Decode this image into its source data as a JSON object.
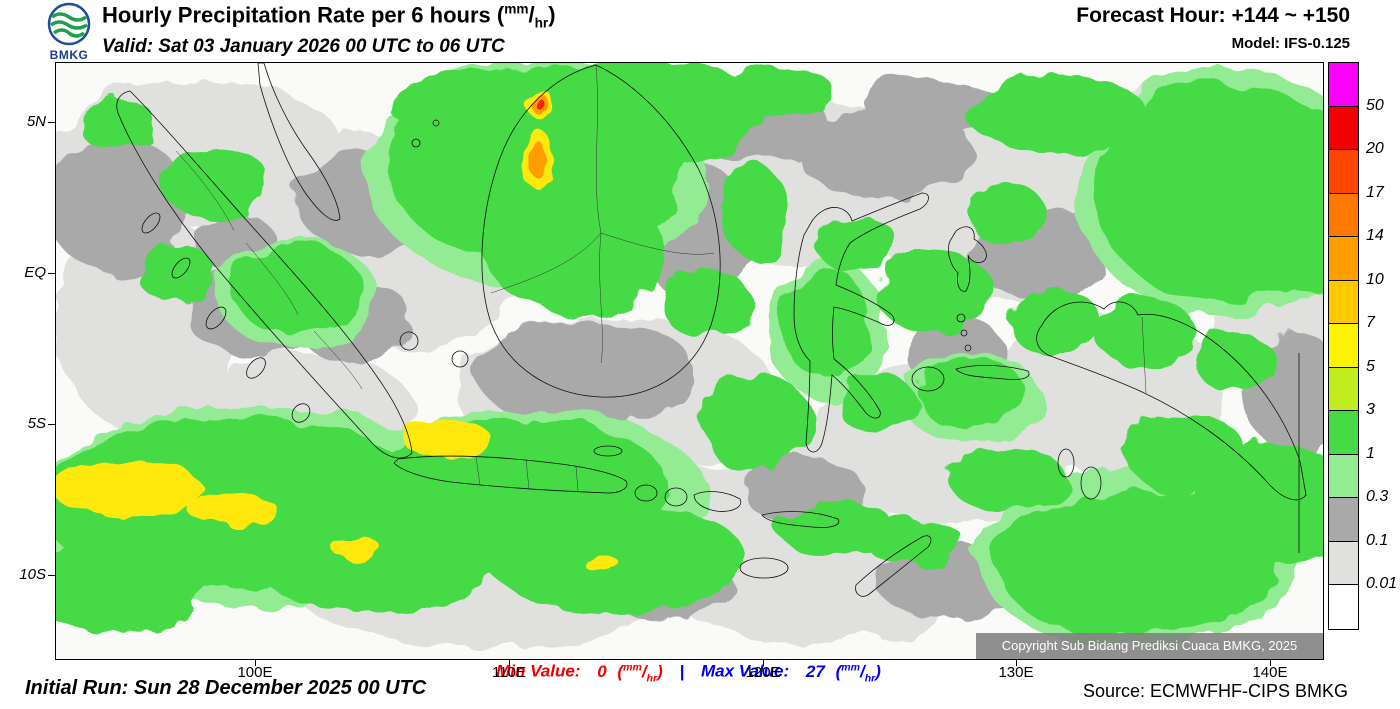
{
  "header": {
    "logo_text": "BMKG",
    "title": "Hourly Precipitation Rate per 6 hours",
    "valid": "Valid: Sat 03 January 2026 00 UTC to 06 UTC",
    "forecast_hour": "Forecast Hour: +144 ~ +150",
    "model": "Model: IFS-0.125"
  },
  "units": {
    "open": "(",
    "num": "mm",
    "slash": "/",
    "den": "hr",
    "close": ")"
  },
  "map": {
    "lat_ticks": [
      "5N",
      "EQ",
      "5S",
      "10S"
    ],
    "lon_ticks": [
      "100E",
      "110E",
      "120E",
      "130E",
      "140E"
    ],
    "copyright": "Copyright Sub Bidang Prediksi Cuaca BMKG, 2025"
  },
  "legend": {
    "values": [
      "50",
      "20",
      "17",
      "14",
      "10",
      "7",
      "5",
      "3",
      "1",
      "0.3",
      "0.1",
      "0.01"
    ],
    "colors": [
      "#fa00fa",
      "#f00000",
      "#ff4600",
      "#ff7800",
      "#ffa000",
      "#ffc800",
      "#fff400",
      "#c0ec20",
      "#46da46",
      "#93ec93",
      "#a9a9a9",
      "#e0e0de",
      "#ffffff"
    ]
  },
  "stats": {
    "min_label": "Min Value:",
    "min_value": "0",
    "separator": "|",
    "max_label": "Max Value:",
    "max_value": "27"
  },
  "footer": {
    "initial_run": "Initial Run: Sun 28 December 2025 00 UTC",
    "source": "Source: ECMWFHF-CIPS BMKG"
  },
  "palette": {
    "green": "#46da46",
    "light_green": "#93ec93",
    "gray": "#a9a9a9",
    "light_gray": "#e0e0de",
    "yellow": "#ffe80a",
    "orange": "#ff9c00",
    "red": "#f82000",
    "magenta": "#fa00fa"
  }
}
